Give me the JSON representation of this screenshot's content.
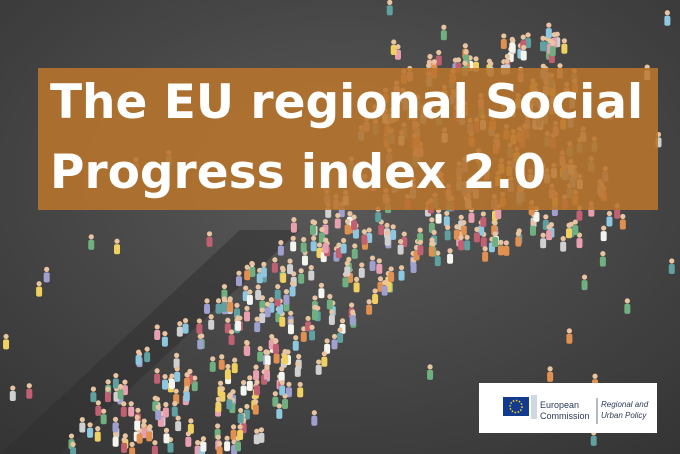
{
  "title": {
    "lines": [
      "The EU regional Social",
      "Progress index 2.0"
    ]
  },
  "logo": {
    "organization": [
      "European",
      "Commission"
    ],
    "department": [
      "Regional and",
      "Urban Policy"
    ]
  }
}
